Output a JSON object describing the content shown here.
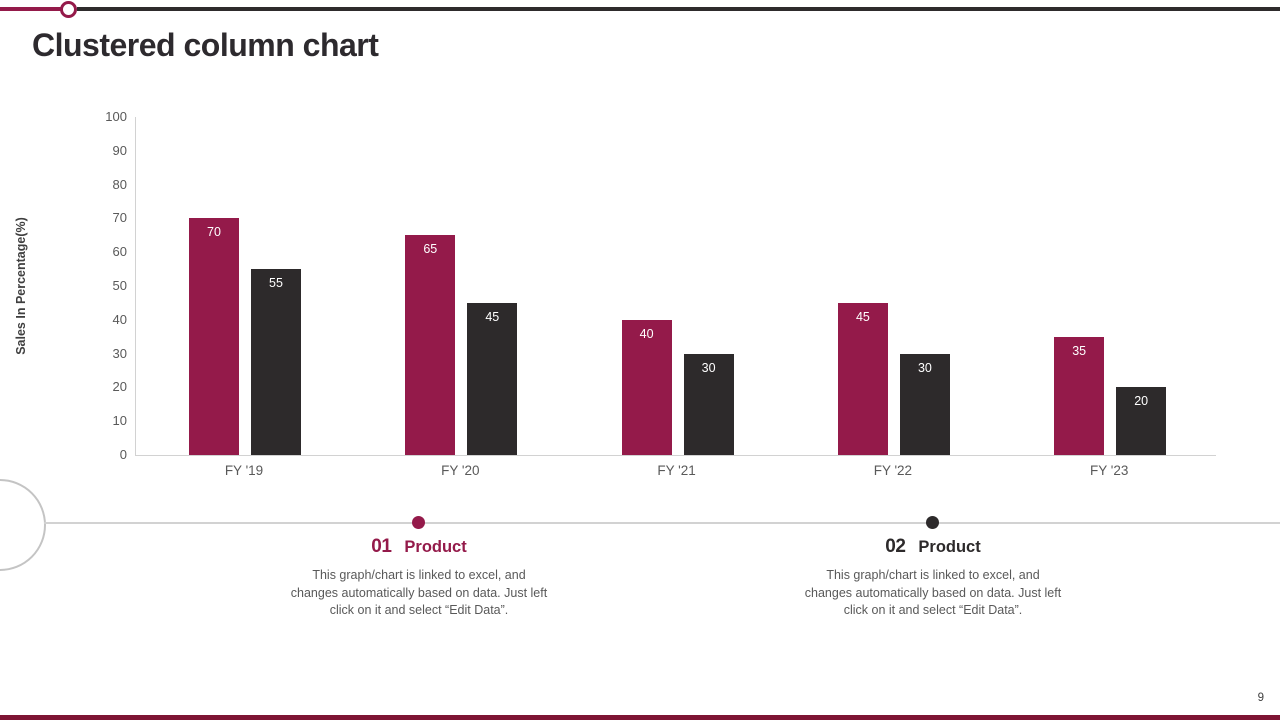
{
  "slide": {
    "title": "Clustered column chart",
    "page_number": "9"
  },
  "colors": {
    "accent": "#941A4A",
    "dark": "#2D2A2B",
    "axis_text": "#595959",
    "muted_line": "#D2D2D2",
    "top_bar_dark": "#2E2B2C",
    "bottom_bar": "#7E1434"
  },
  "chart_data": {
    "type": "bar",
    "title": "",
    "categories": [
      "FY '19",
      "FY '20",
      "FY '21",
      "FY '22",
      "FY '23"
    ],
    "series": [
      {
        "name": "Product 01",
        "color": "#941A4A",
        "values": [
          70,
          65,
          40,
          45,
          35
        ]
      },
      {
        "name": "Product 02",
        "color": "#2D2A2B",
        "values": [
          55,
          45,
          30,
          30,
          20
        ]
      }
    ],
    "xlabel": "",
    "ylabel": "Sales In Percentage(%)",
    "ylim": [
      0,
      100
    ],
    "ytick_step": 10,
    "grid": false,
    "data_labels": "inside-top-white",
    "legend_position": "none"
  },
  "callouts": [
    {
      "number": "01",
      "label": "Product",
      "description": "This graph/chart is linked to excel, and\nchanges automatically based on data. Just left\nclick on it and select “Edit Data”."
    },
    {
      "number": "02",
      "label": "Product",
      "description": "This graph/chart is linked to excel, and\nchanges automatically based on data. Just left\nclick on it and select “Edit Data”."
    }
  ]
}
